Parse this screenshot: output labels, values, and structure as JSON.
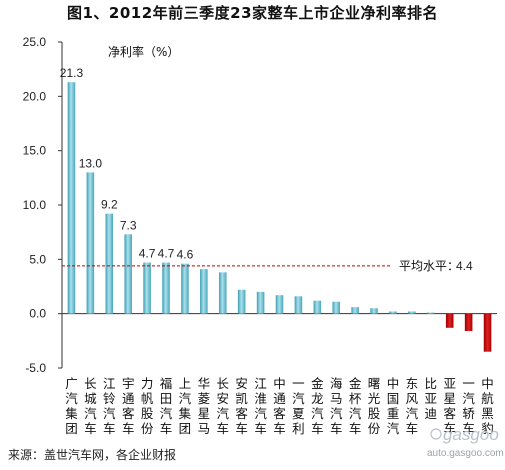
{
  "title": "图1、2012年前三季度23家整车上市企业净利率排名",
  "source": "来源：盖世汽车网，各企业财报",
  "watermark": {
    "logo": "gasgoo",
    "url": "auto.gasgoo.com"
  },
  "colors": {
    "positive": "#7ec9d8",
    "negative": "#c00000",
    "avg_line": "#c00000"
  },
  "chart_data": {
    "type": "bar",
    "title": "图1、2012年前三季度23家整车上市企业净利率排名",
    "series_label": "净利率（%）",
    "ylim": [
      -5.0,
      25.0
    ],
    "yticks": [
      -5.0,
      0.0,
      5.0,
      10.0,
      15.0,
      20.0,
      25.0
    ],
    "ytick_labels": [
      "-5.0",
      "0.0",
      "5.0",
      "10.0",
      "15.0",
      "20.0",
      "25.0"
    ],
    "grid": false,
    "categories": [
      "广汽集团",
      "长城汽车",
      "江铃汽车",
      "宇通客车",
      "力帆股份",
      "福田汽车",
      "上汽集团",
      "华菱星马",
      "长安汽车",
      "安凯客车",
      "江淮汽车",
      "中通客车",
      "一汽夏利",
      "金龙汽车",
      "海马汽车",
      "金杯汽车",
      "曙光股份",
      "中国重汽",
      "东风汽车",
      "比亚迪",
      "亚星客车",
      "一汽轿车",
      "中航黑豹"
    ],
    "values": [
      21.3,
      13.0,
      9.2,
      7.3,
      4.7,
      4.7,
      4.6,
      4.1,
      3.8,
      2.2,
      2.0,
      1.7,
      1.6,
      1.2,
      1.1,
      0.6,
      0.5,
      0.2,
      0.2,
      0.1,
      -1.3,
      -1.6,
      -3.5
    ],
    "data_labels": [
      "21.3",
      "13.0",
      "9.2",
      "7.3",
      "4.7",
      "4.7",
      "4.6",
      null,
      null,
      null,
      null,
      null,
      null,
      null,
      null,
      null,
      null,
      null,
      null,
      null,
      null,
      null,
      null
    ],
    "average": {
      "label": "平均水平：",
      "value": 4.4,
      "value_label": "4.4"
    }
  }
}
